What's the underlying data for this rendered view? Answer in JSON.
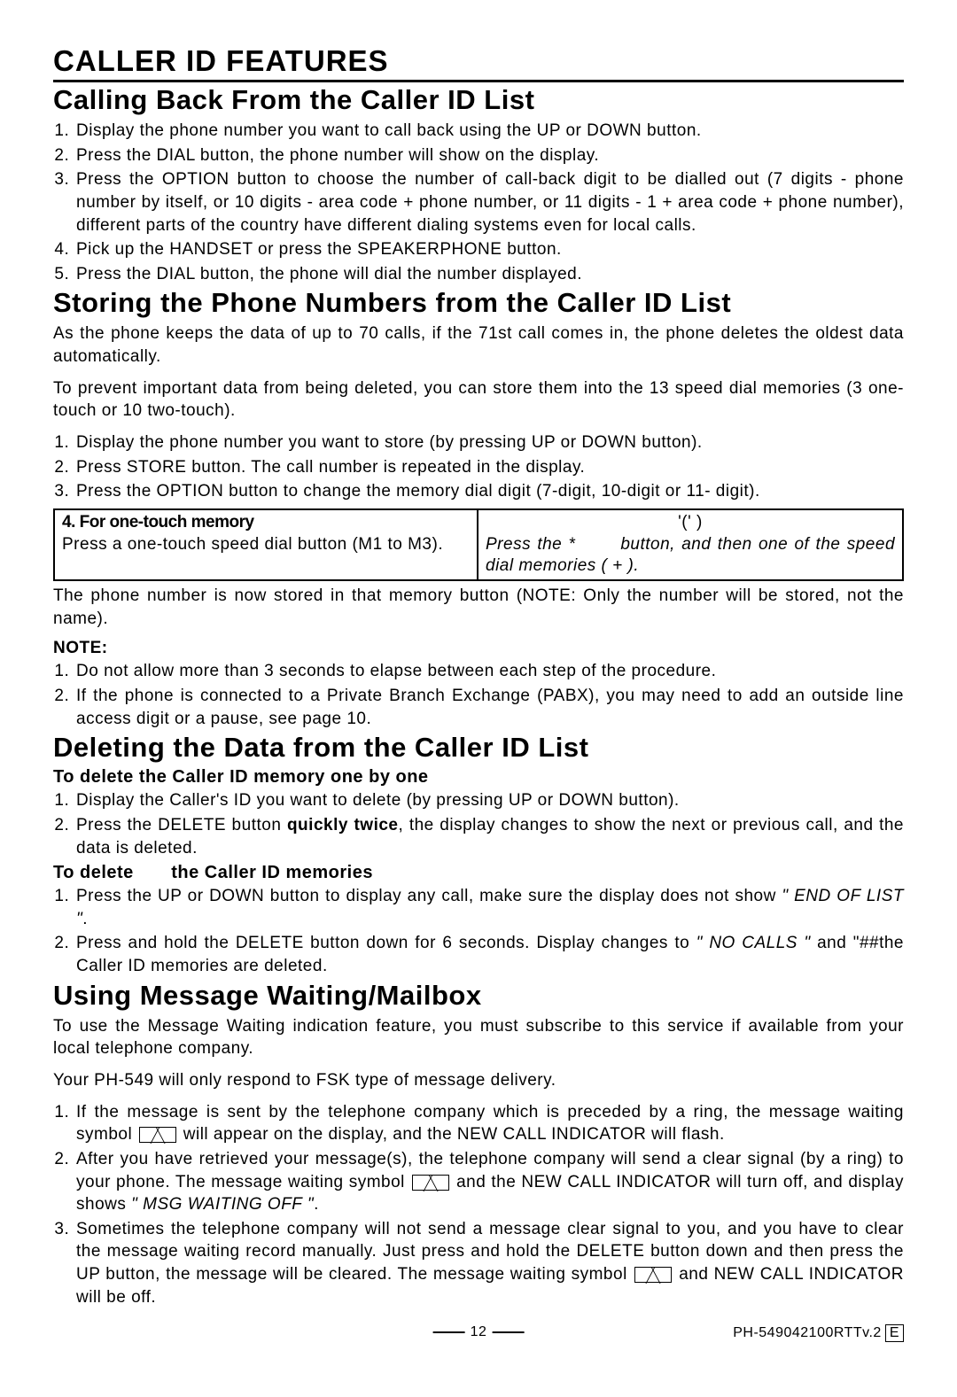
{
  "heading1": "CALLER ID FEATURES",
  "section1": {
    "title": "Calling Back From the Caller ID List",
    "items": [
      "Display the phone number you want to call back using the UP or DOWN button.",
      "Press the DIAL button, the phone number will show on the display.",
      "Press the OPTION button to choose the number of call-back digit to be dialled out (7 digits - phone number by itself,  or 10 digits - area code + phone number, or 11 digits - 1 + area code + phone number), different parts of the country have different dialing systems even for local calls.",
      "Pick up the HANDSET or press the SPEAKERPHONE button.",
      "Press the DIAL button, the phone will dial the number displayed."
    ]
  },
  "section2": {
    "title": "Storing the Phone Numbers from the Caller ID List",
    "intro1": "As the phone keeps the data of up to 70 calls, if the 71st call comes in, the phone deletes the oldest data automatically.",
    "intro2": "To prevent important data from being deleted, you can store them into the 13 speed dial memories (3 one-touch or 10 two-touch).",
    "items": [
      "Display the phone number you want to store (by pressing UP or DOWN button).",
      "Press STORE button.  The call number is repeated in the display.",
      "Press the OPTION button to change the memory dial digit (7-digit, 10-digit or 11- digit)."
    ],
    "table": {
      "left_head": "4. For one-touch memory",
      "left_body": "Press a one-touch speed dial button (M1 to M3).",
      "right_head": "'('  )",
      "right_body_a": "Press the  *",
      "right_body_b": "button,  and  then  one",
      "right_body_c": "of the speed dial memories (     +  )."
    },
    "outro": "The phone number is now stored in that memory button (NOTE:  Only the number will be stored, not the name).",
    "note_label": "NOTE:",
    "notes": [
      "Do not allow more than 3 seconds to elapse between each step of the procedure.",
      "If the phone is connected to a Private Branch Exchange (PABX), you may need to add an outside line access digit or a pause, see page 10."
    ]
  },
  "section3": {
    "title": "Deleting the Data from the Caller ID List",
    "sub1_title": "To delete the Caller ID memory one by one",
    "sub1_items": [
      "Display the Caller's ID you want to delete (by pressing UP or DOWN button)."
    ],
    "sub1_item2_a": "Press the DELETE button ",
    "sub1_item2_b": "quickly twice",
    "sub1_item2_c": ", the display changes to show the next or previous call, and the data is deleted.",
    "sub2_title": "To delete       the Caller ID memories",
    "sub2_item1_a": "Press the UP or DOWN button to display any call, make sure the display does not show ",
    "sub2_item1_b": "\" END OF LIST \"",
    "sub2_item1_c": ".",
    "sub2_item2_a": "Press and hold the DELETE button down for 6 seconds.  Display changes to ",
    "sub2_item2_b": "\" NO CALLS \"",
    "sub2_item2_c": " and \"##the Caller ID memories are deleted."
  },
  "section4": {
    "title": "Using Message Waiting/Mailbox",
    "intro1": "To use the Message Waiting indication feature, you must subscribe to this service if available from your local telephone company.",
    "intro2": "Your PH-549 will only respond to FSK type of message delivery.",
    "item1_a": "If the message is sent by the telephone company which is preceded by a ring, the message waiting symbol ",
    "item1_b": " will appear on the display, and the NEW CALL INDICATOR will flash.",
    "item2_a": "After you have retrieved your message(s), the telephone company will send a clear signal (by a ring) to your phone. The message waiting symbol ",
    "item2_b": " and the NEW CALL INDICATOR will turn off, and display shows ",
    "item2_c": "\" MSG WAITING OFF \"",
    "item2_d": ".",
    "item3_a": "Sometimes the telephone company will not send a message clear signal to you, and you have to clear the message waiting record manually.  Just press and hold the DELETE button down and then press the UP button, the message will be cleared.  The message waiting symbol ",
    "item3_b": " and NEW CALL INDICATOR will be off."
  },
  "footer": {
    "page": "12",
    "ref": "PH-549042100RTTv.2",
    "box": "E"
  }
}
